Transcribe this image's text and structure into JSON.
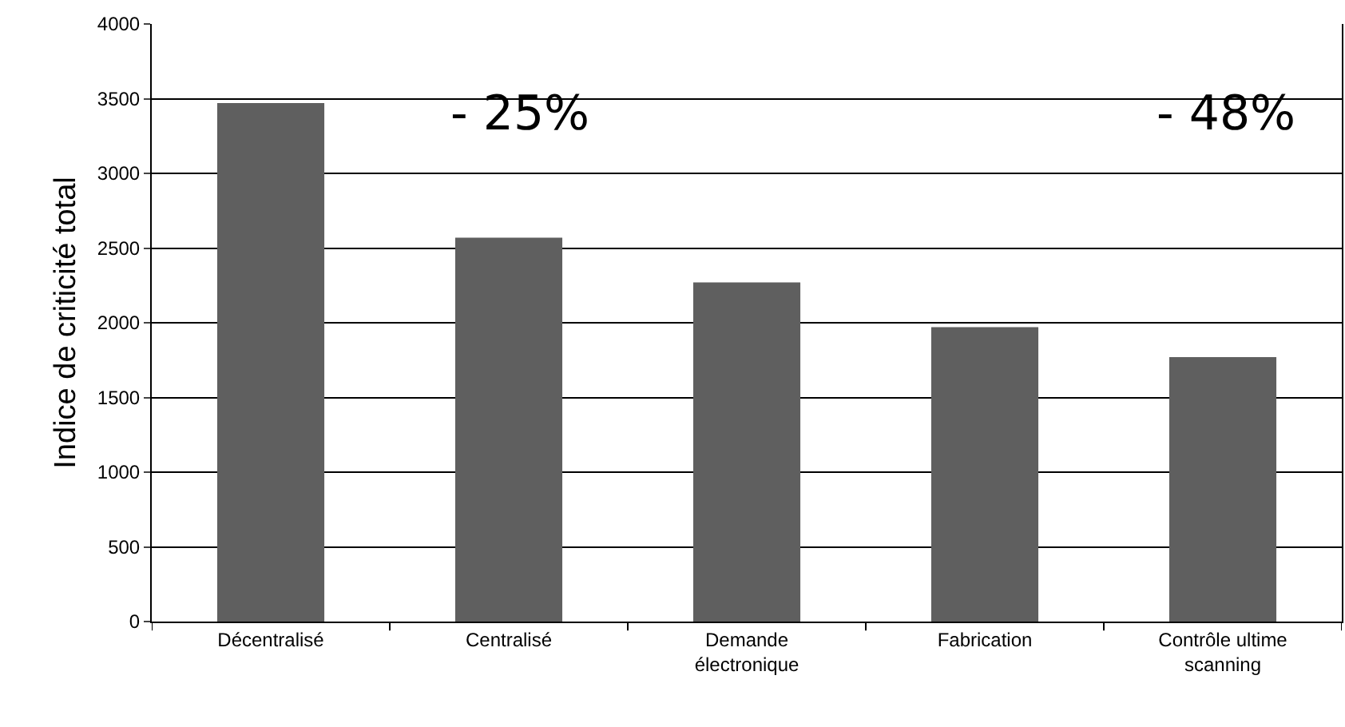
{
  "chart_data": {
    "type": "bar",
    "ylabel": "Indice de criticité total",
    "categories": [
      "Décentralisé",
      "Centralisé",
      "Demande\nélectronique",
      "Fabrication",
      "Contrôle ultime\nscanning"
    ],
    "values": [
      3470,
      2570,
      2270,
      1970,
      1770
    ],
    "color": "#5f5f5f",
    "ylim": [
      0,
      4000
    ],
    "yticks": [
      0,
      500,
      1000,
      1500,
      2000,
      2500,
      3000,
      3500,
      4000
    ],
    "grid": "y",
    "annotations": [
      "- 25%",
      "- 48%"
    ]
  }
}
